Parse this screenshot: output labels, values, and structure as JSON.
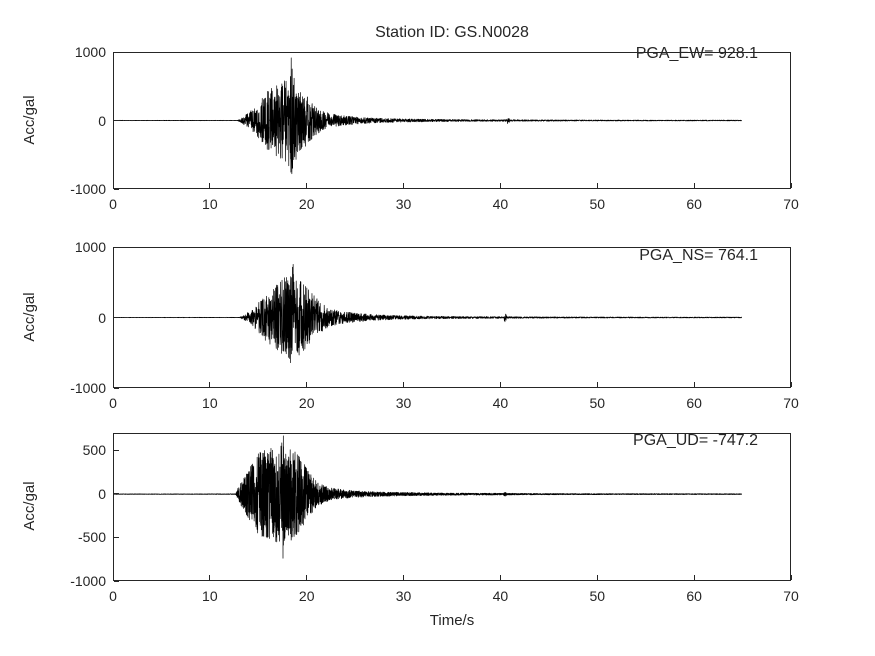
{
  "chart_data": {
    "type": "line",
    "title": "Station ID: GS.N0028",
    "xlabel": "Time/s",
    "ylabel": "Acc/gal",
    "x_range": [
      0,
      70
    ],
    "x_ticks": [
      0,
      10,
      20,
      30,
      40,
      50,
      60,
      70
    ],
    "signal_end_s": 65,
    "grid": false,
    "legend": "none",
    "line_color": "#000000",
    "axis_color": "#262626",
    "background_color": "#ffffff",
    "subplots": [
      {
        "name": "EW",
        "pga_label": "PGA_EW= 928.1",
        "pga": 928.1,
        "peak_time_s": 18.35,
        "ylim": [
          -1000,
          1000
        ],
        "y_ticks": [
          1000,
          0,
          -1000
        ],
        "sample_rate_hz": 60,
        "spike_prob": 0.06,
        "seed": 1011,
        "envelope_t_amp": [
          [
            0,
            3
          ],
          [
            12.8,
            3
          ],
          [
            13.2,
            35
          ],
          [
            14,
            120
          ],
          [
            15,
            260
          ],
          [
            15.8,
            420
          ],
          [
            16.5,
            500
          ],
          [
            17.3,
            560
          ],
          [
            17.9,
            620
          ],
          [
            18.2,
            700
          ],
          [
            18.35,
            928
          ],
          [
            18.55,
            650
          ],
          [
            19,
            540
          ],
          [
            19.6,
            430
          ],
          [
            20.3,
            300
          ],
          [
            21,
            200
          ],
          [
            22,
            120
          ],
          [
            23,
            85
          ],
          [
            24.5,
            60
          ],
          [
            26,
            42
          ],
          [
            28,
            30
          ],
          [
            30,
            24
          ],
          [
            33,
            18
          ],
          [
            36,
            14
          ],
          [
            40.5,
            12
          ],
          [
            40.65,
            12
          ],
          [
            40.8,
            55
          ],
          [
            41,
            12
          ],
          [
            44,
            10
          ],
          [
            48,
            8
          ],
          [
            53,
            7
          ],
          [
            58,
            6
          ],
          [
            65,
            6
          ]
        ]
      },
      {
        "name": "NS",
        "pga_label": "PGA_NS= 764.1",
        "pga": 764.1,
        "peak_time_s": 18.55,
        "ylim": [
          -1000,
          1000
        ],
        "y_ticks": [
          1000,
          0,
          -1000
        ],
        "sample_rate_hz": 60,
        "spike_prob": 0.06,
        "seed": 2022,
        "envelope_t_amp": [
          [
            0,
            3
          ],
          [
            13,
            3
          ],
          [
            13.4,
            30
          ],
          [
            14.2,
            100
          ],
          [
            15,
            220
          ],
          [
            15.8,
            350
          ],
          [
            16.5,
            430
          ],
          [
            17.2,
            520
          ],
          [
            17.9,
            600
          ],
          [
            18.3,
            660
          ],
          [
            18.55,
            764
          ],
          [
            18.8,
            600
          ],
          [
            19.3,
            520
          ],
          [
            20,
            420
          ],
          [
            20.8,
            300
          ],
          [
            21.6,
            190
          ],
          [
            22.5,
            120
          ],
          [
            24,
            80
          ],
          [
            26,
            50
          ],
          [
            28,
            35
          ],
          [
            30,
            26
          ],
          [
            33,
            19
          ],
          [
            36,
            15
          ],
          [
            40.2,
            12
          ],
          [
            40.35,
            12
          ],
          [
            40.5,
            85
          ],
          [
            40.7,
            12
          ],
          [
            44,
            10
          ],
          [
            48,
            8
          ],
          [
            53,
            7
          ],
          [
            58,
            6
          ],
          [
            65,
            6
          ]
        ]
      },
      {
        "name": "UD",
        "pga_label": "PGA_UD= -747.2",
        "pga": -747.2,
        "peak_time_s": 17.5,
        "ylim": [
          -1000,
          700
        ],
        "y_ticks": [
          500,
          0,
          -500,
          -1000
        ],
        "sample_rate_hz": 90,
        "spike_prob": 0.05,
        "seed": 3033,
        "envelope_t_amp": [
          [
            0,
            3
          ],
          [
            12.6,
            4
          ],
          [
            12.9,
            90
          ],
          [
            13.5,
            200
          ],
          [
            14.2,
            330
          ],
          [
            15,
            480
          ],
          [
            15.7,
            520
          ],
          [
            16.3,
            540
          ],
          [
            17,
            560
          ],
          [
            17.35,
            600
          ],
          [
            17.5,
            747
          ],
          [
            17.7,
            520
          ],
          [
            18.3,
            540
          ],
          [
            18.9,
            480
          ],
          [
            19.5,
            380
          ],
          [
            20.2,
            260
          ],
          [
            20.9,
            160
          ],
          [
            21.7,
            100
          ],
          [
            22.5,
            70
          ],
          [
            24,
            48
          ],
          [
            26,
            32
          ],
          [
            28,
            24
          ],
          [
            30,
            20
          ],
          [
            33,
            15
          ],
          [
            36,
            12
          ],
          [
            40.3,
            10
          ],
          [
            40.5,
            28
          ],
          [
            40.7,
            10
          ],
          [
            44,
            8
          ],
          [
            48,
            7
          ],
          [
            53,
            6
          ],
          [
            58,
            6
          ],
          [
            65,
            5
          ]
        ]
      }
    ]
  }
}
